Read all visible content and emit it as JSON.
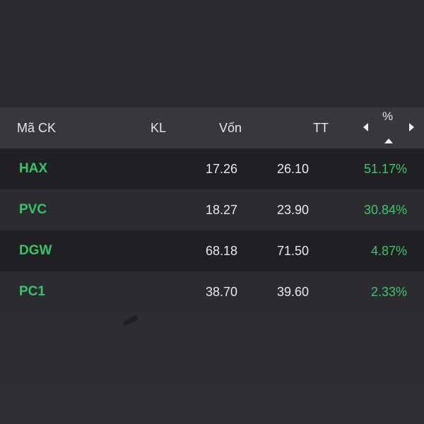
{
  "header": {
    "code_label": "Mã CK",
    "kl_label": "KL",
    "von_label": "Vốn",
    "tt_label": "TT",
    "pct_label": "%",
    "prev_icon": "caret-left-icon",
    "next_icon": "caret-right-icon",
    "sort_icon": "sort-ascending-icon"
  },
  "rows": [
    {
      "code": "HAX",
      "kl": "",
      "von": "17.26",
      "tt": "26.10",
      "pct": "51.17%"
    },
    {
      "code": "PVC",
      "kl": "",
      "von": "18.27",
      "tt": "23.90",
      "pct": "30.84%"
    },
    {
      "code": "DGW",
      "kl": "",
      "von": "68.18",
      "tt": "71.50",
      "pct": "4.87%"
    },
    {
      "code": "PC1",
      "kl": "",
      "von": "38.70",
      "tt": "39.60",
      "pct": "2.33%"
    }
  ],
  "colors": {
    "positive": "#3cc46c",
    "header_bg": "#38383c",
    "row_dark": "#202024",
    "row_light": "#2c2c30"
  }
}
